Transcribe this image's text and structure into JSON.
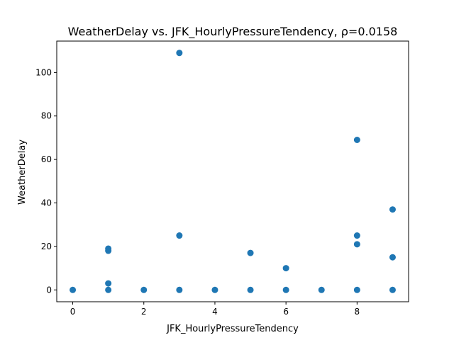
{
  "chart_data": {
    "type": "scatter",
    "title": "WeatherDelay vs. JFK_HourlyPressureTendency, ρ=0.0158",
    "xlabel": "JFK_HourlyPressureTendency",
    "ylabel": "WeatherDelay",
    "xlim": [
      -0.45,
      9.45
    ],
    "ylim": [
      -5.45,
      114.45
    ],
    "xticks": [
      0,
      2,
      4,
      6,
      8
    ],
    "yticks": [
      0,
      20,
      40,
      60,
      80,
      100
    ],
    "grid": false,
    "color": "#1f77b4",
    "points": [
      {
        "x": 0,
        "y": 0
      },
      {
        "x": 1,
        "y": 0
      },
      {
        "x": 1,
        "y": 3
      },
      {
        "x": 1,
        "y": 18
      },
      {
        "x": 1,
        "y": 19
      },
      {
        "x": 2,
        "y": 0
      },
      {
        "x": 3,
        "y": 0
      },
      {
        "x": 3,
        "y": 25
      },
      {
        "x": 3,
        "y": 109
      },
      {
        "x": 4,
        "y": 0
      },
      {
        "x": 5,
        "y": 0
      },
      {
        "x": 5,
        "y": 17
      },
      {
        "x": 6,
        "y": 0
      },
      {
        "x": 6,
        "y": 10
      },
      {
        "x": 7,
        "y": 0
      },
      {
        "x": 8,
        "y": 0
      },
      {
        "x": 8,
        "y": 21
      },
      {
        "x": 8,
        "y": 25
      },
      {
        "x": 8,
        "y": 69
      },
      {
        "x": 9,
        "y": 0
      },
      {
        "x": 9,
        "y": 15
      },
      {
        "x": 9,
        "y": 37
      }
    ]
  }
}
